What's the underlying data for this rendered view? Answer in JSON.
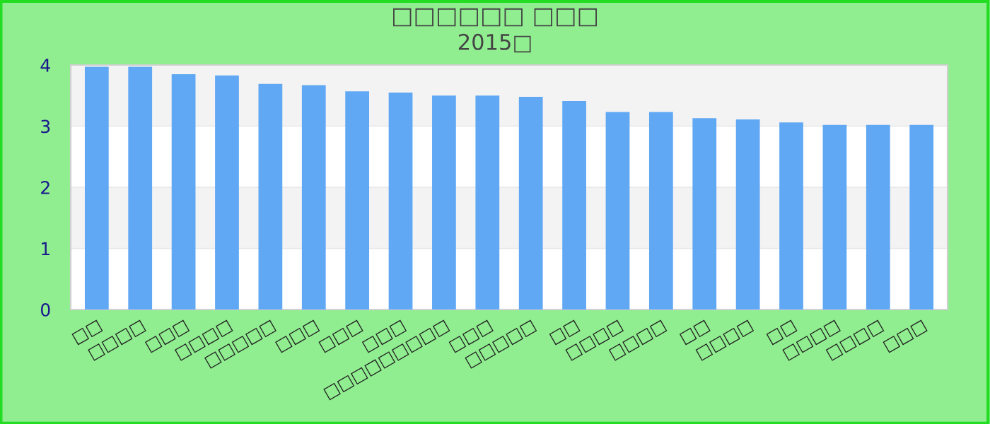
{
  "chart_data": {
    "type": "bar",
    "title": "□□□□□□ □□□",
    "subtitle": "2015□",
    "categories": [
      "□□",
      "□□□□",
      "□□□",
      "□□□□",
      "□□□□□",
      "□□□",
      "□□□",
      "□□□",
      "□□□□□□□□□",
      "□□□",
      "□□□□□",
      "□□",
      "□□□□",
      "□□□□",
      "□□",
      "□□□□",
      "□□",
      "□□□□",
      "□□□□",
      "□□□"
    ],
    "values": [
      3.97,
      3.97,
      3.85,
      3.83,
      3.69,
      3.67,
      3.57,
      3.55,
      3.5,
      3.5,
      3.48,
      3.41,
      3.23,
      3.23,
      3.13,
      3.11,
      3.06,
      3.02,
      3.02,
      3.02
    ],
    "color": "#60a8f4",
    "ylim": [
      0,
      4
    ],
    "yticks": [
      0,
      1,
      2,
      3,
      4
    ],
    "grid": "y",
    "legend": false
  }
}
